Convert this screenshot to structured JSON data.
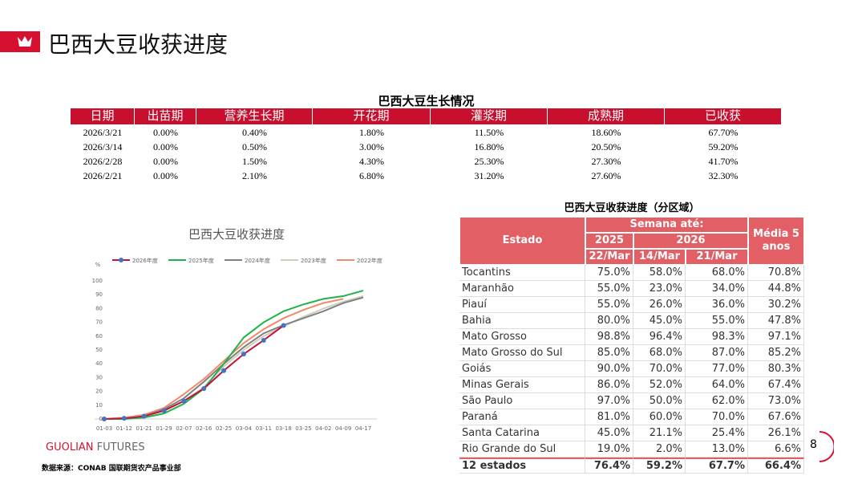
{
  "header": {
    "title": "巴西大豆收获进度"
  },
  "table1": {
    "title": "巴西大豆生长情况",
    "columns": [
      "日期",
      "出苗期",
      "营养生长期",
      "开花期",
      "灌浆期",
      "成熟期",
      "已收获"
    ],
    "rows": [
      [
        "2026/3/21",
        "0.00%",
        "0.40%",
        "1.80%",
        "11.50%",
        "18.60%",
        "67.70%"
      ],
      [
        "2026/3/14",
        "0.00%",
        "0.50%",
        "3.00%",
        "16.80%",
        "20.50%",
        "59.20%"
      ],
      [
        "2026/2/28",
        "0.00%",
        "1.50%",
        "4.30%",
        "25.30%",
        "27.30%",
        "41.70%"
      ],
      [
        "2026/2/21",
        "0.00%",
        "2.10%",
        "6.80%",
        "31.20%",
        "27.60%",
        "32.30%"
      ]
    ]
  },
  "chart_data": {
    "type": "line",
    "title": "巴西大豆收获进度",
    "y_label": "%",
    "categories": [
      "01-03",
      "01-12",
      "01-21",
      "01-29",
      "02-07",
      "02-16",
      "02-25",
      "03-04",
      "03-11",
      "03-18",
      "03-25",
      "04-02",
      "04-09",
      "04-17"
    ],
    "series": [
      {
        "name": "2026年度",
        "color": "#c0143c",
        "marker_color": "#4472c4",
        "values": [
          0,
          0.5,
          2,
          6,
          13,
          22,
          35,
          47,
          57,
          67.7,
          null,
          null,
          null,
          null
        ]
      },
      {
        "name": "2025年度",
        "color": "#22b24c",
        "values": [
          0,
          0,
          1,
          4,
          11,
          22,
          40,
          59,
          70,
          78,
          83,
          87,
          89,
          93
        ]
      },
      {
        "name": "2024年度",
        "color": "#808080",
        "values": [
          0,
          0,
          2,
          7,
          15,
          27,
          40,
          52,
          62,
          68,
          73,
          78,
          84,
          88
        ]
      },
      {
        "name": "2023年度",
        "color": "#cfcfbd",
        "values": [
          0,
          1,
          2,
          6,
          13,
          23,
          38,
          50,
          60,
          67,
          74,
          80,
          85,
          89
        ]
      },
      {
        "name": "2022年度",
        "color": "#f08a6a",
        "values": [
          0,
          1,
          3,
          8,
          18,
          29,
          42,
          55,
          65,
          73,
          79,
          84,
          87,
          null
        ]
      }
    ],
    "ylim": [
      0,
      100
    ],
    "yticks": [
      0,
      10,
      20,
      30,
      40,
      50,
      60,
      70,
      80,
      90,
      100
    ],
    "grid": false
  },
  "table2": {
    "title": "巴西大豆收获进度（分区域）",
    "header": {
      "estado": "Estado",
      "semana": "Semana até:",
      "year_2025": "2025",
      "year_2026": "2026",
      "media": "Média 5 anos",
      "dates": [
        "22/Mar",
        "14/Mar",
        "21/Mar"
      ]
    },
    "rows": [
      [
        "Tocantins",
        "75.0%",
        "58.0%",
        "68.0%",
        "70.8%"
      ],
      [
        "Maranhão",
        "55.0%",
        "23.0%",
        "34.0%",
        "44.8%"
      ],
      [
        "Piauí",
        "55.0%",
        "26.0%",
        "36.0%",
        "30.2%"
      ],
      [
        "Bahia",
        "80.0%",
        "45.0%",
        "55.0%",
        "47.8%"
      ],
      [
        "Mato Grosso",
        "98.8%",
        "96.4%",
        "98.3%",
        "97.1%"
      ],
      [
        "Mato Grosso do Sul",
        "85.0%",
        "68.0%",
        "87.0%",
        "85.2%"
      ],
      [
        "Goiás",
        "90.0%",
        "70.0%",
        "77.0%",
        "80.3%"
      ],
      [
        "Minas Gerais",
        "86.0%",
        "52.0%",
        "64.0%",
        "67.4%"
      ],
      [
        "São Paulo",
        "97.0%",
        "50.0%",
        "62.0%",
        "73.0%"
      ],
      [
        "Paraná",
        "81.0%",
        "60.0%",
        "70.0%",
        "67.6%"
      ],
      [
        "Santa Catarina",
        "45.0%",
        "21.1%",
        "25.4%",
        "26.1%"
      ],
      [
        "Rio Grande do Sul",
        "19.0%",
        "2.0%",
        "13.0%",
        "6.6%"
      ],
      [
        "12 estados",
        "76.4%",
        "59.2%",
        "67.7%",
        "66.4%"
      ]
    ]
  },
  "footer": {
    "brand_1": "GUOLIAN",
    "brand_2": "FUTURES",
    "source": "数据来源：CONAB 国联期货农产品事业部",
    "page": "8"
  }
}
